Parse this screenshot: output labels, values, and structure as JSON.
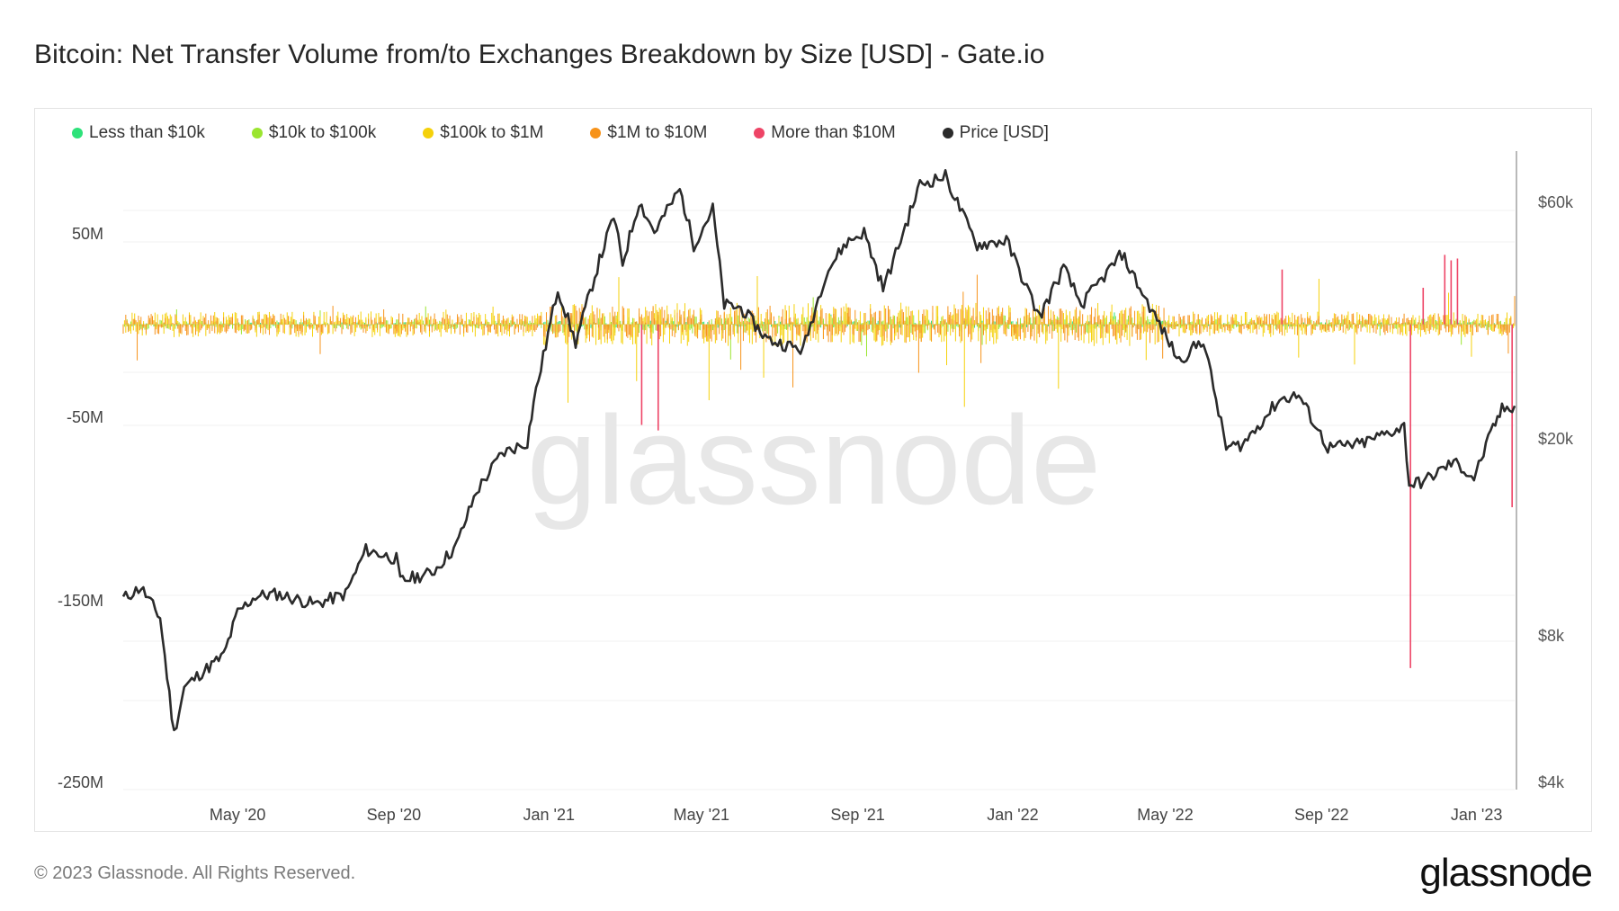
{
  "header": {
    "title": "Bitcoin: Net Transfer Volume from/to Exchanges Breakdown by Size [USD] - Gate.io"
  },
  "watermark": "glassnode",
  "footer": {
    "copyright": "© 2023 Glassnode. All Rights Reserved.",
    "logo": "glassnode"
  },
  "chart_data": {
    "type": "bar",
    "title": "Bitcoin: Net Transfer Volume from/to Exchanges Breakdown by Size [USD] - Gate.io",
    "legend_position": "top-left",
    "grid": true,
    "x_ticks": [
      "May '20",
      "Sep '20",
      "Jan '21",
      "May '21",
      "Sep '21",
      "Jan '22",
      "May '22",
      "Sep '22",
      "Jan '23"
    ],
    "x_range": [
      "2020-02-01",
      "2023-01-31"
    ],
    "y_left": {
      "ticks": [
        "50M",
        "-50M",
        "-150M",
        "-250M"
      ],
      "range": [
        -250000000,
        50000000
      ]
    },
    "y_right": {
      "ticks": [
        "$60k",
        "$20k",
        "$8k",
        "$4k"
      ],
      "scale": "log",
      "range": [
        4000,
        60000
      ]
    },
    "colors": {
      "less_than_10k": "#2ee27a",
      "10k_to_100k": "#9be52f",
      "100k_to_1m": "#f5d10a",
      "1m_to_10m": "#f7931a",
      "more_than_10m": "#ee4466",
      "price": "#2b2b2b"
    },
    "series": [
      {
        "name": "Less than $10k",
        "color": "#2ee27a",
        "description_values": "small, near zero (±1M)"
      },
      {
        "name": "$10k to $100k",
        "color": "#9be52f",
        "description_values": "near zero (±3M)"
      },
      {
        "name": "$100k to $1M",
        "color": "#f5d10a",
        "description_values": "mostly within ±10M, spikes to 15M"
      },
      {
        "name": "$1M to $10M",
        "color": "#f7931a",
        "description_values": "mostly within ±10M, spikes to -40M"
      },
      {
        "name": "More than $10M",
        "color": "#ee4466",
        "spikes": [
          {
            "date": "2021-03-15",
            "value": -55000000
          },
          {
            "date": "2021-03-28",
            "value": -58000000
          },
          {
            "date": "2022-08-01",
            "value": 30000000
          },
          {
            "date": "2022-11-10",
            "value": -188000000
          },
          {
            "date": "2022-11-20",
            "value": 20000000
          },
          {
            "date": "2022-12-07",
            "value": 38000000
          },
          {
            "date": "2022-12-12",
            "value": 35000000
          },
          {
            "date": "2022-12-17",
            "value": 36000000
          },
          {
            "date": "2023-01-29",
            "value": -100000000
          }
        ]
      },
      {
        "name": "Price [USD]",
        "color": "#2b2b2b",
        "axis": "right",
        "points": [
          [
            "2020-02-01",
            9400
          ],
          [
            "2020-02-15",
            9900
          ],
          [
            "2020-03-01",
            8600
          ],
          [
            "2020-03-12",
            5000
          ],
          [
            "2020-03-20",
            6200
          ],
          [
            "2020-04-01",
            6600
          ],
          [
            "2020-04-20",
            7200
          ],
          [
            "2020-05-01",
            8800
          ],
          [
            "2020-05-15",
            9500
          ],
          [
            "2020-06-01",
            9600
          ],
          [
            "2020-07-01",
            9150
          ],
          [
            "2020-07-25",
            9600
          ],
          [
            "2020-08-10",
            11800
          ],
          [
            "2020-09-03",
            11300
          ],
          [
            "2020-09-06",
            10200
          ],
          [
            "2020-10-01",
            10600
          ],
          [
            "2020-10-20",
            12000
          ],
          [
            "2020-11-05",
            15500
          ],
          [
            "2020-11-25",
            18500
          ],
          [
            "2020-12-15",
            19500
          ],
          [
            "2020-12-20",
            23500
          ],
          [
            "2021-01-08",
            40000
          ],
          [
            "2021-01-22",
            31000
          ],
          [
            "2021-02-08",
            44000
          ],
          [
            "2021-02-21",
            56000
          ],
          [
            "2021-02-28",
            45000
          ],
          [
            "2021-03-13",
            60000
          ],
          [
            "2021-03-25",
            52000
          ],
          [
            "2021-04-14",
            63500
          ],
          [
            "2021-04-25",
            49000
          ],
          [
            "2021-05-10",
            58000
          ],
          [
            "2021-05-19",
            37000
          ],
          [
            "2021-06-01",
            36500
          ],
          [
            "2021-06-22",
            31500
          ],
          [
            "2021-07-20",
            30000
          ],
          [
            "2021-08-07",
            43000
          ],
          [
            "2021-08-23",
            49500
          ],
          [
            "2021-09-06",
            52000
          ],
          [
            "2021-09-21",
            40000
          ],
          [
            "2021-10-01",
            47000
          ],
          [
            "2021-10-20",
            65000
          ],
          [
            "2021-11-09",
            67500
          ],
          [
            "2021-11-26",
            54000
          ],
          [
            "2021-12-04",
            49000
          ],
          [
            "2021-12-27",
            50000
          ],
          [
            "2022-01-22",
            35000
          ],
          [
            "2022-02-10",
            44000
          ],
          [
            "2022-02-24",
            37000
          ],
          [
            "2022-03-28",
            47000
          ],
          [
            "2022-04-11",
            40000
          ],
          [
            "2022-05-12",
            28500
          ],
          [
            "2022-05-31",
            31500
          ],
          [
            "2022-06-18",
            19000
          ],
          [
            "2022-07-01",
            19300
          ],
          [
            "2022-07-30",
            23800
          ],
          [
            "2022-08-14",
            24300
          ],
          [
            "2022-09-06",
            19000
          ],
          [
            "2022-10-01",
            19300
          ],
          [
            "2022-11-05",
            21000
          ],
          [
            "2022-11-09",
            16000
          ],
          [
            "2022-11-20",
            16200
          ],
          [
            "2022-12-14",
            17800
          ],
          [
            "2022-12-30",
            16500
          ],
          [
            "2023-01-14",
            20800
          ],
          [
            "2023-01-21",
            22700
          ],
          [
            "2023-01-31",
            23100
          ]
        ]
      }
    ]
  }
}
